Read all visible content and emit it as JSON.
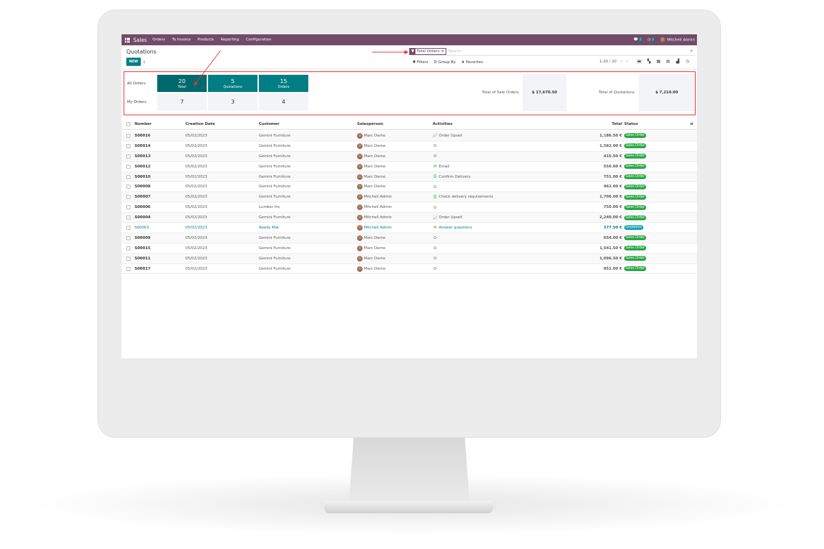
{
  "navbar": {
    "app": "Sales",
    "menu": [
      "Orders",
      "To Invoice",
      "Products",
      "Reporting",
      "Configuration"
    ],
    "messages_count": "5",
    "activities_count": "2",
    "user": "Mitchell Admin",
    "color": "#714b67"
  },
  "control": {
    "title": "Quotations",
    "new_label": "NEW",
    "facet": "Total Orders",
    "search_placeholder": "Search...",
    "filters": "Filters",
    "group_by": "Group By",
    "favorites": "Favorites",
    "pager": "1-20 / 20"
  },
  "dashboard": {
    "all_orders_label": "All Orders",
    "my_orders_label": "My Orders",
    "tiles": [
      {
        "value": "20",
        "label": "Total",
        "my": "7"
      },
      {
        "value": "5",
        "label": "Quotations",
        "my": "3"
      },
      {
        "value": "15",
        "label": "Orders",
        "my": "4"
      }
    ],
    "sale_orders_label": "Total of Sale Orders",
    "sale_orders_value": "$ 17,670.50",
    "quotations_label": "Total of Quotations",
    "quotations_value": "$ 7,210.00"
  },
  "table": {
    "headers": {
      "number": "Number",
      "date": "Creation Date",
      "customer": "Customer",
      "salesperson": "Salesperson",
      "activities": "Activities",
      "total": "Total",
      "status": "Status"
    },
    "rows": [
      {
        "number": "S00016",
        "date": "05/02/2023",
        "customer": "Gemini Furniture",
        "salesperson": "Marc Demo",
        "activity_icon": "chart-line",
        "activity_color": "#b7793a",
        "activity": "Order Upsell",
        "total": "1,186.50 €",
        "status": "Sales Order"
      },
      {
        "number": "S00014",
        "date": "05/02/2023",
        "customer": "Gemini Furniture",
        "salesperson": "Marc Demo",
        "activity_icon": "clock",
        "activity_color": "#555555",
        "activity": "",
        "total": "1,582.00 €",
        "status": "Sales Order"
      },
      {
        "number": "S00013",
        "date": "05/02/2023",
        "customer": "Gemini Furniture",
        "salesperson": "Marc Demo",
        "activity_icon": "clock",
        "activity_color": "#555555",
        "activity": "",
        "total": "415.50 €",
        "status": "Sales Order"
      },
      {
        "number": "S00012",
        "date": "05/02/2023",
        "customer": "Gemini Furniture",
        "salesperson": "Marc Demo",
        "activity_icon": "envelope",
        "activity_color": "#28a745",
        "activity": "Email",
        "total": "556.00 €",
        "status": "Sales Order"
      },
      {
        "number": "S00010",
        "date": "05/02/2023",
        "customer": "Gemini Furniture",
        "salesperson": "Marc Demo",
        "activity_icon": "tasks",
        "activity_color": "#28a745",
        "activity": "Confirm Delivery",
        "total": "751.00 €",
        "status": "Sales Order"
      },
      {
        "number": "S00008",
        "date": "05/02/2023",
        "customer": "Gemini Furniture",
        "salesperson": "Marc Demo",
        "activity_icon": "clock",
        "activity_color": "#555555",
        "activity": "",
        "total": "462.00 €",
        "status": "Sales Order"
      },
      {
        "number": "S00007",
        "date": "05/02/2023",
        "customer": "Gemini Furniture",
        "salesperson": "Mitchell Admin",
        "activity_icon": "tasks",
        "activity_color": "#28a745",
        "activity": "Check delivery requirements",
        "total": "1,706.00 €",
        "status": "Sales Order"
      },
      {
        "number": "S00006",
        "date": "05/02/2023",
        "customer": "Lumber Inc",
        "salesperson": "Mitchell Admin",
        "activity_icon": "clock",
        "activity_color": "#555555",
        "activity": "",
        "total": "750.00 €",
        "status": "Sales Order"
      },
      {
        "number": "S00004",
        "date": "05/02/2023",
        "customer": "Gemini Furniture",
        "salesperson": "Mitchell Admin",
        "activity_icon": "chart-line",
        "activity_color": "#28a745",
        "activity": "Order Upsell",
        "total": "2,240.00 €",
        "status": "Sales Order"
      },
      {
        "number": "S00003",
        "date": "05/02/2023",
        "customer": "Ready Mat",
        "salesperson": "Mitchell Admin",
        "activity_icon": "envelope",
        "activity_color": "#b7793a",
        "activity": "Answer questions",
        "total": "377.50 €",
        "status": "Quotation"
      },
      {
        "number": "S00009",
        "date": "05/02/2023",
        "customer": "Gemini Furniture",
        "salesperson": "Marc Demo",
        "activity_icon": "clock",
        "activity_color": "#555555",
        "activity": "",
        "total": "654.00 €",
        "status": "Sales Order"
      },
      {
        "number": "S00015",
        "date": "05/02/2023",
        "customer": "Gemini Furniture",
        "salesperson": "Marc Demo",
        "activity_icon": "clock",
        "activity_color": "#555555",
        "activity": "",
        "total": "1,541.50 €",
        "status": "Sales Order"
      },
      {
        "number": "S00011",
        "date": "05/02/2023",
        "customer": "Gemini Furniture",
        "salesperson": "Marc Demo",
        "activity_icon": "clock",
        "activity_color": "#555555",
        "activity": "",
        "total": "1,096.50 €",
        "status": "Sales Order"
      },
      {
        "number": "S00017",
        "date": "05/02/2023",
        "customer": "Gemini Furniture",
        "salesperson": "Marc Demo",
        "activity_icon": "clock",
        "activity_color": "#555555",
        "activity": "",
        "total": "951.00 €",
        "status": "Sales Order"
      }
    ]
  },
  "colors": {
    "accent": "#017e84",
    "sales_order": "#28a745",
    "quotation": "#17a2b8",
    "annotation": "#e33333"
  }
}
